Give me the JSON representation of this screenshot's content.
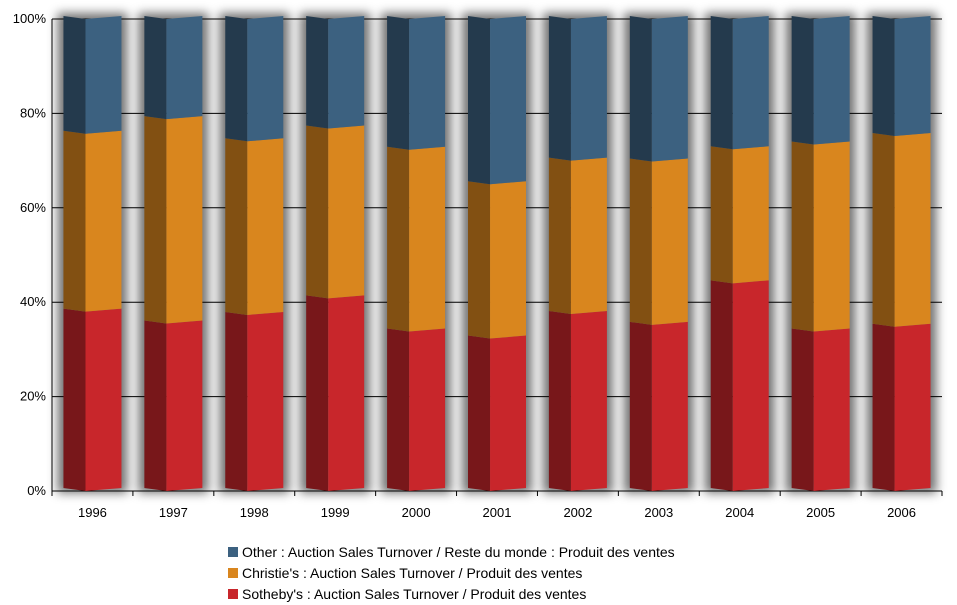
{
  "chart_data": {
    "type": "bar",
    "stacked": true,
    "percent": true,
    "categories": [
      "1996",
      "1997",
      "1998",
      "1999",
      "2000",
      "2001",
      "2002",
      "2003",
      "2004",
      "2005",
      "2006"
    ],
    "series": [
      {
        "name": "Sotheby's : Auction Sales Turnover / Produit des ventes",
        "color": "#c8262b",
        "values": [
          38,
          35.5,
          37.3,
          40.8,
          33.8,
          32.3,
          37.5,
          35.2,
          44,
          33.8,
          34.8
        ]
      },
      {
        "name": "Christie's : Auction Sales Turnover / Produit des ventes",
        "color": "#d9861e",
        "values": [
          37.7,
          43.3,
          36.8,
          36,
          38.5,
          32.7,
          32.5,
          34.6,
          28.4,
          39.6,
          40.4
        ]
      },
      {
        "name": "Other : Auction Sales Turnover / Reste du monde : Produit des ventes",
        "color": "#3c6180",
        "values": [
          24.3,
          21.2,
          25.9,
          23.2,
          27.7,
          35,
          30,
          30.2,
          27.6,
          26.6,
          24.8
        ]
      }
    ],
    "yticks": [
      "0%",
      "20%",
      "40%",
      "60%",
      "80%",
      "100%"
    ],
    "ylim": [
      0,
      100
    ],
    "grid": true,
    "legend_position": "bottom"
  },
  "legend": [
    {
      "label": "Other : Auction Sales Turnover / Reste du monde : Produit des ventes",
      "color": "#3c6180"
    },
    {
      "label": "Christie's : Auction Sales Turnover / Produit des ventes",
      "color": "#d9861e"
    },
    {
      "label": "Sotheby's : Auction Sales Turnover / Produit des ventes",
      "color": "#c8262b"
    }
  ]
}
